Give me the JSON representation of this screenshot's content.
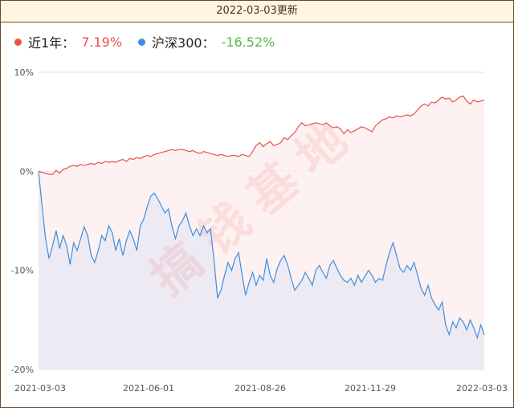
{
  "header": {
    "title": "2022-03-03更新"
  },
  "colors": {
    "primary": "#e8524a",
    "secondary": "#3d8fe0",
    "fund_fill": "#fdecec",
    "index_fill": "#e8e8f4"
  },
  "watermark": "搞钱基地",
  "chart_data": {
    "type": "line",
    "title": "",
    "ylim": [
      -20,
      10
    ],
    "yticks": [
      "10%",
      "0%",
      "-10%",
      "-20%"
    ],
    "yvalues": [
      10,
      0,
      -10,
      -20
    ],
    "xticks": [
      "2021-03-03",
      "2021-06-01",
      "2021-08-26",
      "2021-11-29",
      "2022-03-03"
    ],
    "grid": true,
    "legend_position": "top-left",
    "series": [
      {
        "name": "近1年：",
        "label_value": "7.19%",
        "values": [
          0.0,
          -0.1,
          -0.2,
          -0.3,
          -0.3,
          0.1,
          -0.2,
          0.2,
          0.3,
          0.5,
          0.6,
          0.5,
          0.7,
          0.6,
          0.7,
          0.8,
          0.7,
          0.9,
          0.8,
          1.0,
          0.9,
          1.0,
          0.9,
          1.1,
          1.2,
          1.0,
          1.3,
          1.2,
          1.4,
          1.3,
          1.5,
          1.6,
          1.5,
          1.7,
          1.8,
          1.9,
          2.0,
          2.1,
          2.2,
          2.1,
          2.2,
          2.2,
          2.1,
          2.0,
          2.1,
          1.9,
          1.8,
          2.0,
          1.9,
          1.8,
          1.7,
          1.6,
          1.7,
          1.6,
          1.5,
          1.6,
          1.6,
          1.5,
          1.7,
          1.6,
          1.5,
          2.0,
          2.6,
          2.9,
          2.5,
          2.8,
          3.0,
          2.6,
          2.7,
          2.9,
          3.4,
          3.2,
          3.6,
          3.9,
          4.5,
          4.9,
          4.6,
          4.7,
          4.8,
          4.9,
          4.8,
          4.7,
          4.9,
          4.6,
          4.4,
          4.5,
          4.3,
          3.8,
          4.2,
          3.9,
          4.1,
          4.3,
          4.5,
          4.4,
          4.2,
          4.0,
          4.6,
          4.9,
          5.2,
          5.3,
          5.5,
          5.4,
          5.6,
          5.5,
          5.6,
          5.7,
          5.6,
          5.8,
          6.2,
          6.6,
          6.8,
          6.6,
          7.0,
          6.9,
          7.2,
          7.5,
          7.3,
          7.4,
          7.0,
          7.2,
          7.5,
          7.6,
          7.1,
          6.8,
          7.2,
          7.0,
          7.1,
          7.19
        ]
      },
      {
        "name": "沪深300：",
        "label_value": "-16.52%",
        "values": [
          0.0,
          -3.5,
          -6.8,
          -8.8,
          -7.5,
          -6.0,
          -7.8,
          -6.5,
          -7.5,
          -9.4,
          -7.2,
          -8.0,
          -6.8,
          -5.6,
          -6.5,
          -8.5,
          -9.2,
          -8.0,
          -6.5,
          -7.0,
          -5.5,
          -6.2,
          -8.0,
          -6.8,
          -8.5,
          -7.0,
          -6.0,
          -6.8,
          -8.0,
          -5.5,
          -4.8,
          -3.5,
          -2.5,
          -2.2,
          -2.8,
          -3.5,
          -4.2,
          -3.8,
          -5.5,
          -6.8,
          -5.5,
          -5.0,
          -4.2,
          -5.5,
          -6.5,
          -5.8,
          -6.5,
          -5.5,
          -6.2,
          -5.8,
          -9.0,
          -12.8,
          -12.0,
          -10.5,
          -9.2,
          -10.0,
          -8.8,
          -8.2,
          -10.5,
          -12.5,
          -11.2,
          -10.2,
          -11.5,
          -10.5,
          -11.0,
          -8.8,
          -10.5,
          -11.2,
          -9.8,
          -9.0,
          -8.5,
          -9.5,
          -10.8,
          -12.0,
          -11.5,
          -11.0,
          -10.2,
          -10.8,
          -11.5,
          -10.0,
          -9.5,
          -10.2,
          -10.8,
          -9.5,
          -9.0,
          -9.8,
          -10.5,
          -11.0,
          -11.2,
          -10.8,
          -11.5,
          -10.5,
          -11.2,
          -10.6,
          -10.0,
          -10.5,
          -11.2,
          -10.8,
          -11.0,
          -9.5,
          -8.2,
          -7.2,
          -8.5,
          -9.8,
          -10.2,
          -9.5,
          -10.0,
          -9.2,
          -10.5,
          -11.8,
          -12.5,
          -11.5,
          -12.8,
          -13.5,
          -14.0,
          -13.2,
          -15.5,
          -16.5,
          -15.2,
          -15.8,
          -14.8,
          -15.2,
          -16.0,
          -15.0,
          -15.8,
          -16.8,
          -15.5,
          -16.52
        ]
      }
    ]
  }
}
